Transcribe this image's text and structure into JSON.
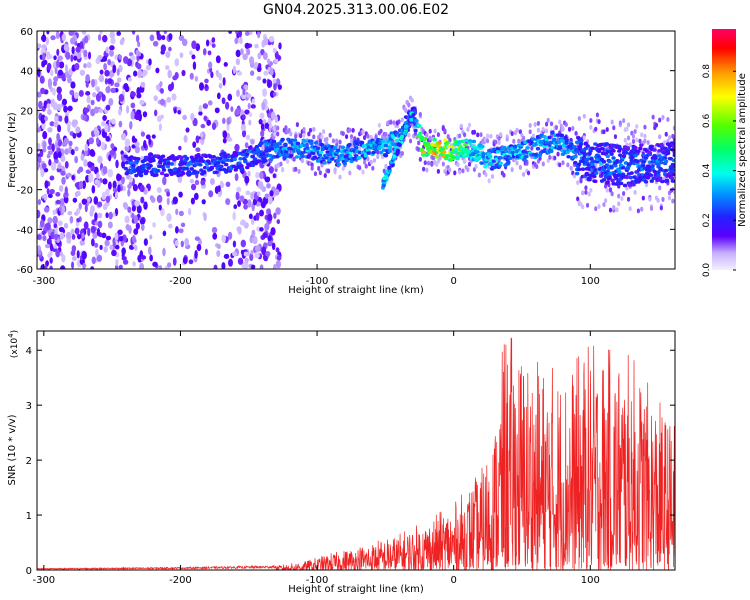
{
  "title": "GN04.2025.313.00.06.E02",
  "colors": {
    "snr_line": "#ee2222",
    "background": "#ffffff",
    "axis": "#000000"
  },
  "chart_data": [
    {
      "type": "heatmap",
      "name": "spectrogram",
      "xlabel": "Height of straight line (km)",
      "ylabel": "Frequency (Hz)",
      "xlim": [
        -305,
        162
      ],
      "ylim": [
        -60,
        60
      ],
      "xticks": [
        -300,
        -200,
        -100,
        0,
        100
      ],
      "yticks": [
        -60,
        -40,
        -20,
        0,
        20,
        40,
        60
      ],
      "colorbar": {
        "label": "Normalized spectral amplitude",
        "range": [
          0.0,
          0.97
        ],
        "ticks": [
          0.0,
          0.2,
          0.4,
          0.6,
          0.8
        ]
      },
      "ridge": [
        {
          "x": -230,
          "f": -8,
          "a": 0.32
        },
        {
          "x": -200,
          "f": -8,
          "a": 0.3
        },
        {
          "x": -160,
          "f": -6,
          "a": 0.33
        },
        {
          "x": -135,
          "f": 0,
          "a": 0.36
        },
        {
          "x": -110,
          "f": 1,
          "a": 0.4
        },
        {
          "x": -85,
          "f": -3,
          "a": 0.38
        },
        {
          "x": -70,
          "f": 0,
          "a": 0.42
        },
        {
          "x": -50,
          "f": 1,
          "a": 0.45
        },
        {
          "x": -38,
          "f": 8,
          "a": 0.4
        },
        {
          "x": -30,
          "f": 18,
          "a": 0.25
        },
        {
          "x": -22,
          "f": 1,
          "a": 0.85
        },
        {
          "x": -10,
          "f": 0,
          "a": 0.9
        },
        {
          "x": 0,
          "f": 0,
          "a": 0.75
        },
        {
          "x": 10,
          "f": 2,
          "a": 0.55
        },
        {
          "x": 25,
          "f": -5,
          "a": 0.45
        },
        {
          "x": 50,
          "f": -1,
          "a": 0.42
        },
        {
          "x": 75,
          "f": 5,
          "a": 0.4
        },
        {
          "x": 95,
          "f": -5,
          "a": 0.38
        },
        {
          "x": 125,
          "f": -8,
          "a": 0.36
        },
        {
          "x": 160,
          "f": -6,
          "a": 0.34
        }
      ]
    },
    {
      "type": "line",
      "name": "snr",
      "xlabel": "Height of straight line (km)",
      "ylabel": "SNR (10 * v/v)",
      "multiplier_label": "(x10",
      "multiplier_exp": "4",
      "xlim": [
        -305,
        162
      ],
      "ylim": [
        0,
        4.35
      ],
      "xticks": [
        -300,
        -200,
        -100,
        0,
        100
      ],
      "yticks": [
        0,
        1,
        2,
        3,
        4
      ],
      "envelope": [
        {
          "x": -305,
          "y": 0.03
        },
        {
          "x": -200,
          "y": 0.05
        },
        {
          "x": -130,
          "y": 0.08
        },
        {
          "x": -110,
          "y": 0.15
        },
        {
          "x": -90,
          "y": 0.3
        },
        {
          "x": -60,
          "y": 0.5
        },
        {
          "x": -40,
          "y": 0.65
        },
        {
          "x": -20,
          "y": 0.9
        },
        {
          "x": 0,
          "y": 1.2
        },
        {
          "x": 20,
          "y": 1.8
        },
        {
          "x": 30,
          "y": 2.6
        },
        {
          "x": 37,
          "y": 4.35
        },
        {
          "x": 60,
          "y": 3.8
        },
        {
          "x": 80,
          "y": 3.6
        },
        {
          "x": 100,
          "y": 4.1
        },
        {
          "x": 130,
          "y": 3.9
        },
        {
          "x": 162,
          "y": 2.6
        }
      ]
    }
  ]
}
